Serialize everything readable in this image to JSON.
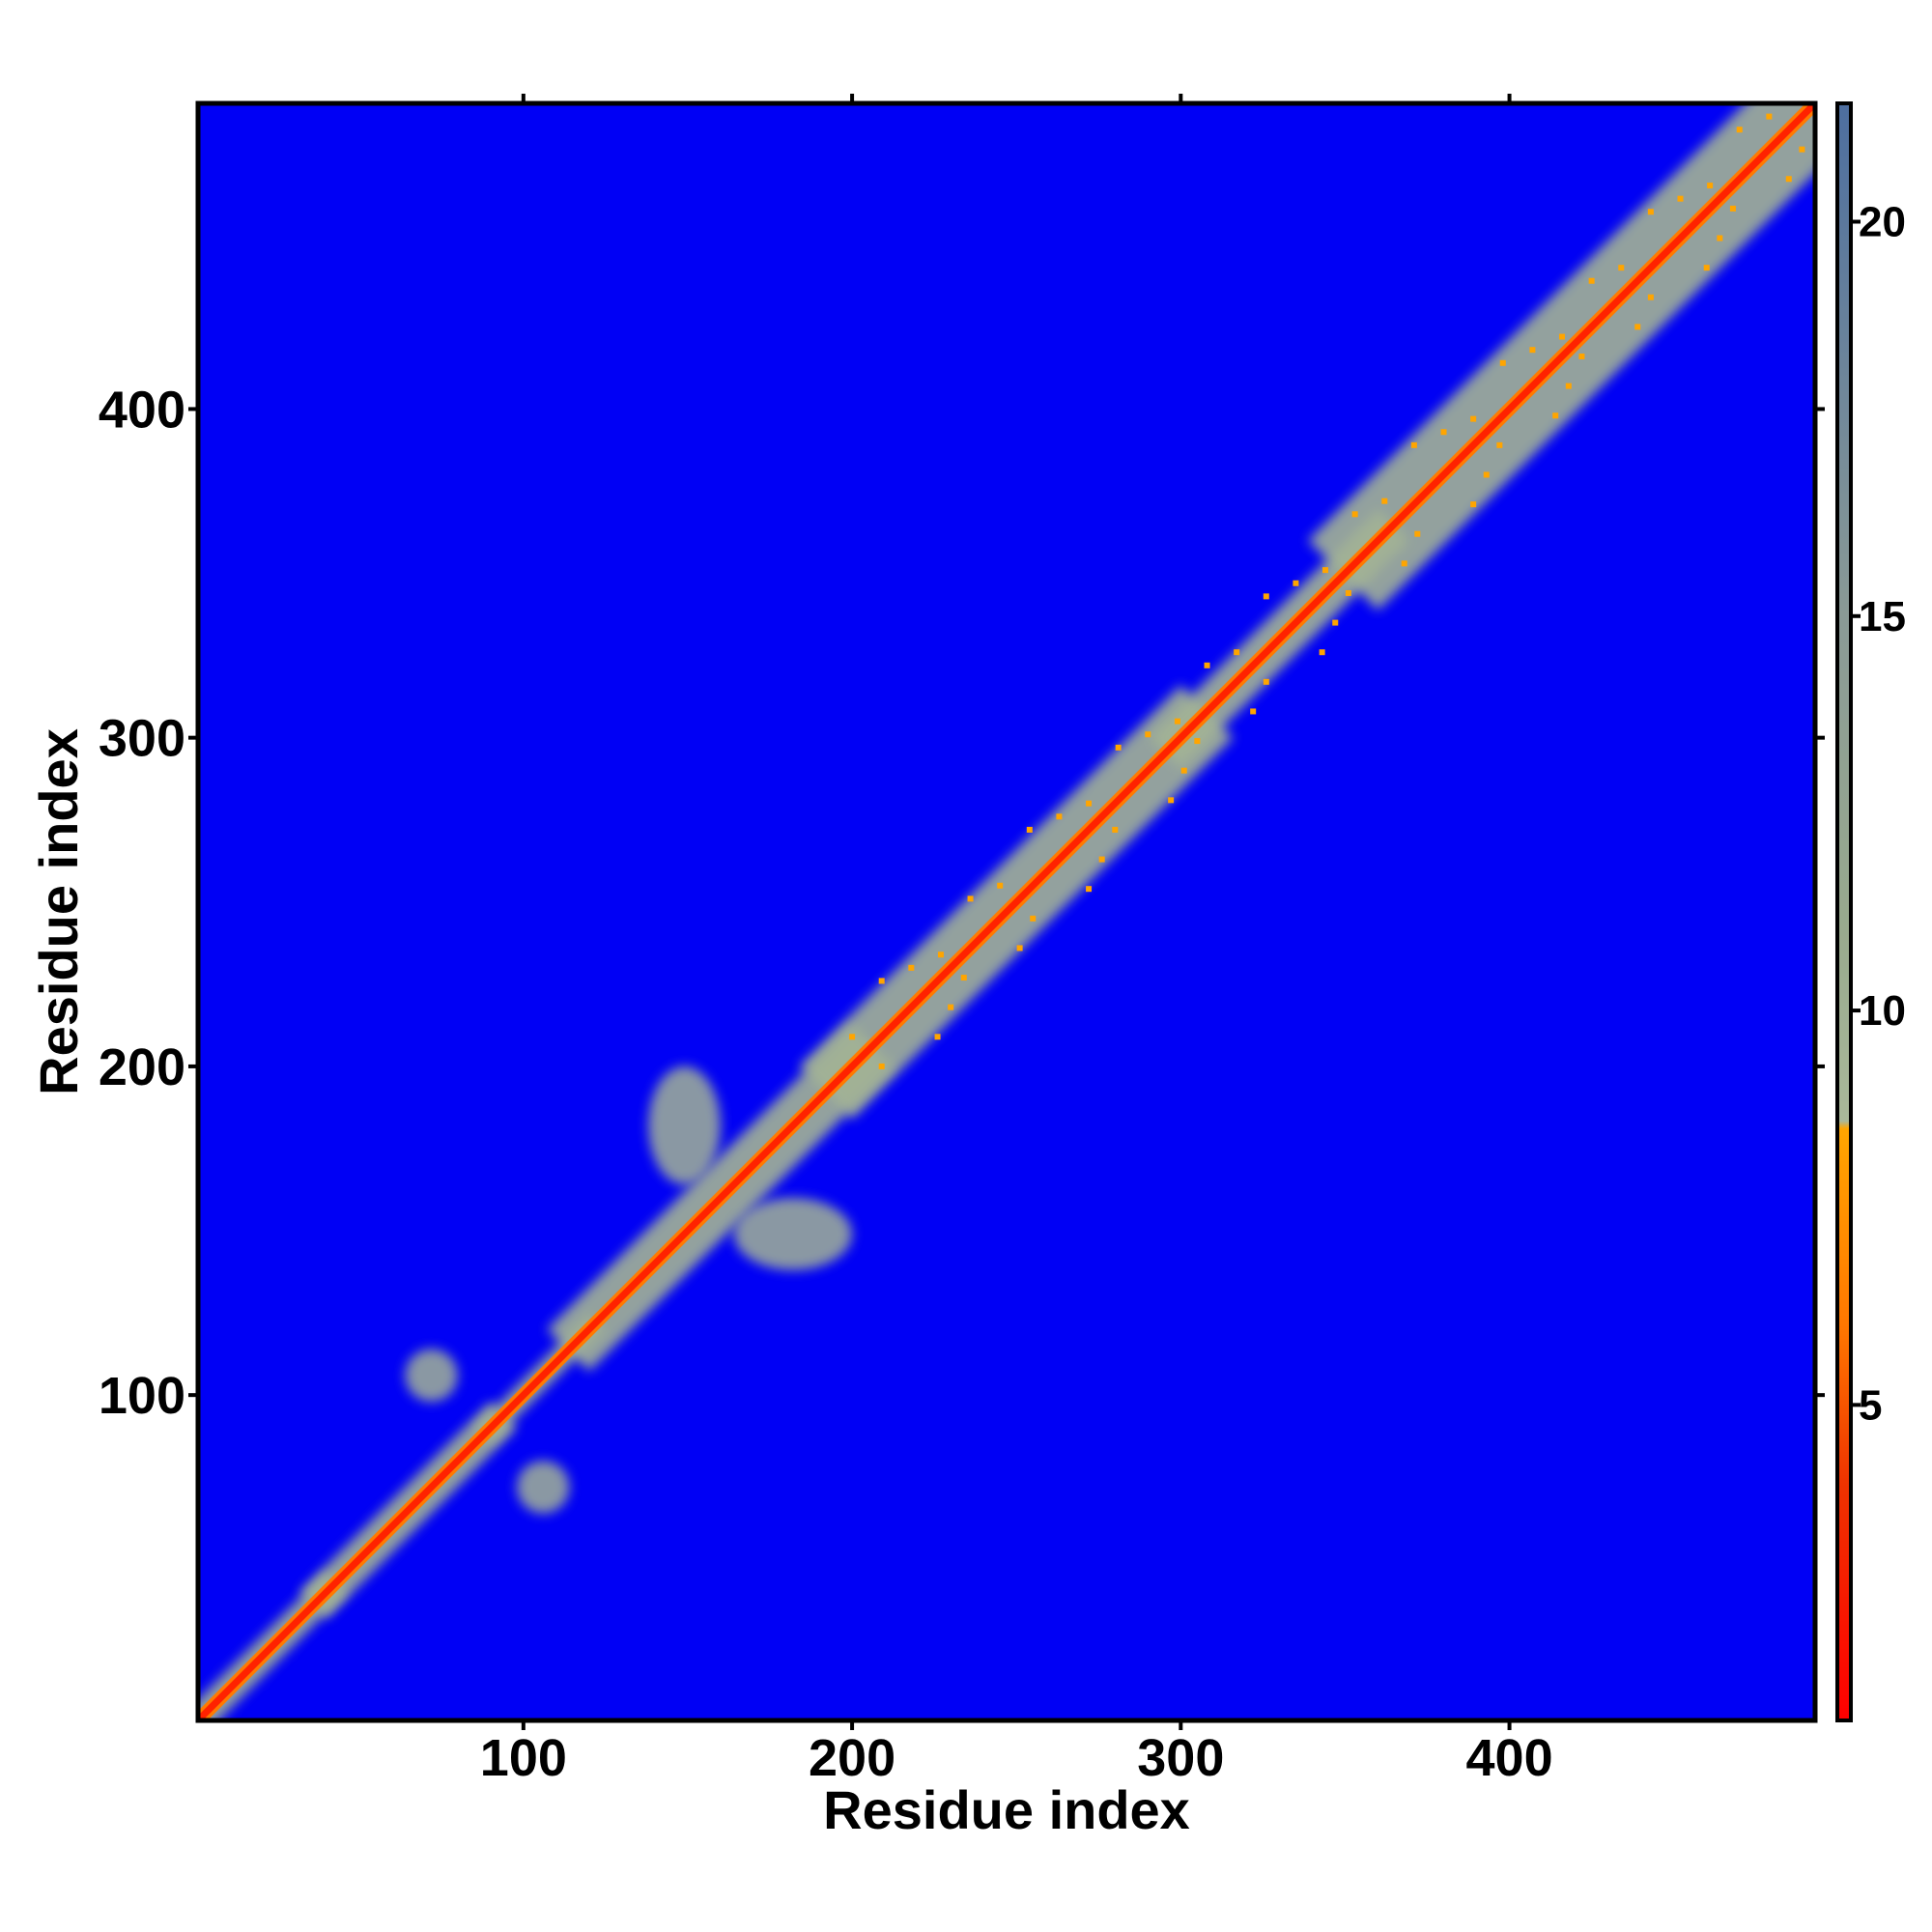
{
  "chart_data": {
    "type": "heatmap",
    "title": "",
    "xlabel": "Residue index",
    "ylabel": "Residue index",
    "xlim": [
      1,
      493
    ],
    "ylim": [
      1,
      493
    ],
    "x_ticks": [
      100,
      200,
      300,
      400
    ],
    "y_ticks": [
      100,
      200,
      300,
      400
    ],
    "grid": false,
    "matrix_description": "Symmetric residue-residue distance map; low values (red) along the diagonal, moderate values (orange/gray-green) in bands near the diagonal and a few off-diagonal patches, saturated high values (blue) elsewhere.",
    "colorbar": {
      "ticks": [
        5,
        10,
        15,
        20
      ],
      "range": [
        1,
        21.5
      ],
      "placement": "right",
      "stops": [
        {
          "value": 1,
          "color": "#ff0000"
        },
        {
          "value": 4,
          "color": "#ee3300"
        },
        {
          "value": 6,
          "color": "#ff7700"
        },
        {
          "value": 8.5,
          "color": "#ffa500"
        },
        {
          "value": 8.6,
          "color": "#a9b89a"
        },
        {
          "value": 11,
          "color": "#99aa8e"
        },
        {
          "value": 15,
          "color": "#8a9a96"
        },
        {
          "value": 21.5,
          "color": "#4d6e9f"
        }
      ]
    },
    "background_color": "#0000f5",
    "diagonal_color": "#ff2200",
    "near_diagonal_color": "#a3b395",
    "contact_color": "#ffa500",
    "contact_regions": [
      {
        "x": [
          1,
          40
        ],
        "y": [
          1,
          40
        ]
      },
      {
        "x": [
          40,
          90
        ],
        "y": [
          40,
          90
        ]
      },
      {
        "x": [
          90,
          120
        ],
        "y": [
          90,
          120
        ]
      },
      {
        "x": [
          120,
          200
        ],
        "y": [
          120,
          200
        ]
      },
      {
        "x": [
          200,
          300
        ],
        "y": [
          200,
          300
        ]
      },
      {
        "x": [
          300,
          360
        ],
        "y": [
          300,
          360
        ]
      },
      {
        "x": [
          360,
          493
        ],
        "y": [
          360,
          493
        ]
      },
      {
        "x": [
          64,
          80
        ],
        "y": [
          98,
          114
        ]
      },
      {
        "x": [
          98,
          114
        ],
        "y": [
          64,
          80
        ]
      },
      {
        "x": [
          138,
          160
        ],
        "y": [
          164,
          200
        ]
      },
      {
        "x": [
          164,
          200
        ],
        "y": [
          138,
          160
        ]
      }
    ]
  }
}
